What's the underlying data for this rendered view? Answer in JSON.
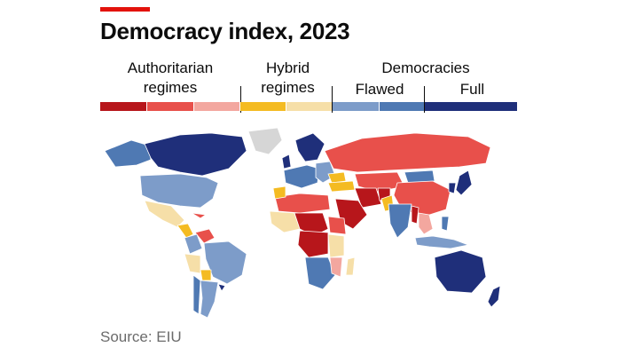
{
  "header": {
    "title": "Democracy index, 2023"
  },
  "legend": {
    "authoritarian_line1": "Authoritarian",
    "authoritarian_line2": "regimes",
    "hybrid_line1": "Hybrid",
    "hybrid_line2": "regimes",
    "democracies": "Democracies",
    "flawed": "Flawed",
    "full": "Full",
    "swatches": [
      {
        "category": "authoritarian",
        "color": "#b7161b"
      },
      {
        "category": "authoritarian",
        "color": "#e8504b"
      },
      {
        "category": "authoritarian",
        "color": "#f3a79f"
      },
      {
        "category": "hybrid",
        "color": "#f4bb22"
      },
      {
        "category": "hybrid",
        "color": "#f6dfa8"
      },
      {
        "category": "flawed democracy",
        "color": "#7d9cc9"
      },
      {
        "category": "flawed democracy",
        "color": "#4f79b3"
      },
      {
        "category": "full democracy",
        "color": "#1f2f7a"
      }
    ]
  },
  "map": {
    "no_data_color": "#d6d6d6"
  },
  "footer": {
    "source": "Source: EIU"
  },
  "colors": {
    "accent": "#e3120b",
    "text": "#0c0c0c",
    "source_text": "#6b6b6b",
    "background": "#ffffff"
  }
}
